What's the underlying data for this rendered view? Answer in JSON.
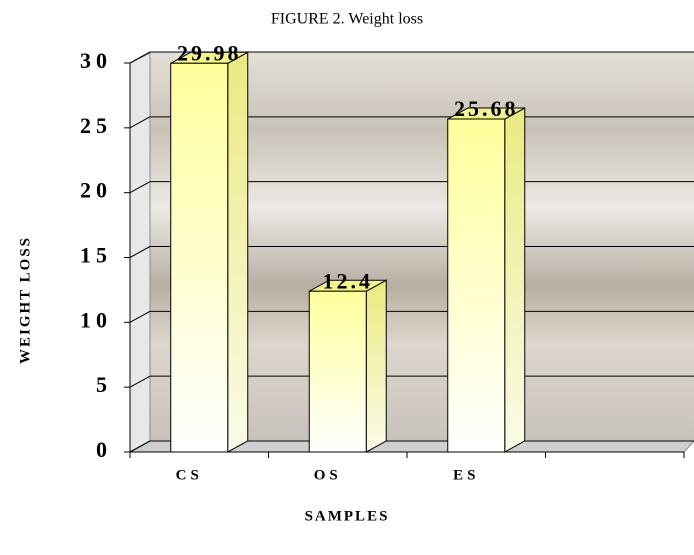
{
  "chart_data": {
    "type": "bar3d",
    "title": "FIGURE 2. Weight loss",
    "x_label": "SAMPLES",
    "y_label": "WEIGHT LOSS",
    "categories": [
      "CS",
      "OS",
      "ES",
      null
    ],
    "values": [
      29.98,
      12.4,
      25.68,
      null
    ],
    "color": "#ffffb0",
    "ylim": [
      0,
      30
    ],
    "yticks": [
      0,
      5,
      10,
      15,
      20,
      25,
      30
    ],
    "grid": true
  }
}
